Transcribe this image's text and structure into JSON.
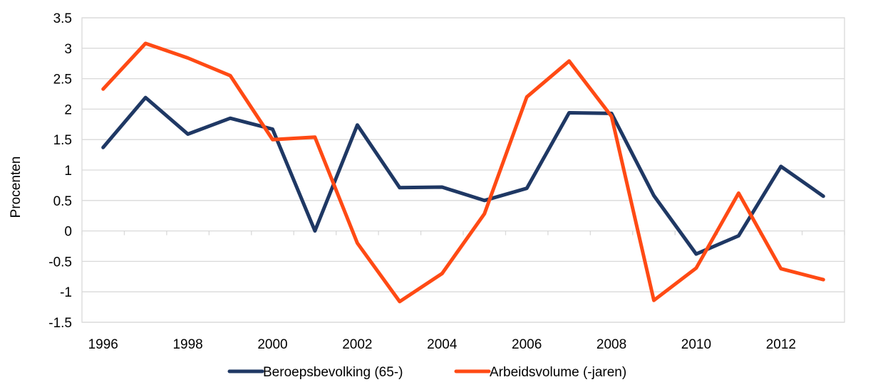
{
  "chart_data": {
    "type": "line",
    "ylabel": "Procenten",
    "xlabel": "",
    "x": [
      1996,
      1997,
      1998,
      1999,
      2000,
      2001,
      2002,
      2003,
      2004,
      2005,
      2006,
      2007,
      2008,
      2009,
      2010,
      2011,
      2012,
      2013
    ],
    "x_tick_labels": [
      "1996",
      "1998",
      "2000",
      "2002",
      "2004",
      "2006",
      "2008",
      "2010",
      "2012"
    ],
    "y_tick_labels": [
      "3.5",
      "3",
      "2.5",
      "2",
      "1.5",
      "1",
      "0.5",
      "0",
      "-0.5",
      "-1",
      "-1.5"
    ],
    "ylim": [
      -1.5,
      3.5
    ],
    "grid": true,
    "legend_position": "bottom",
    "series": [
      {
        "name": "Beroepsbevolking (65-)",
        "color": "#1f3864",
        "values": [
          1.37,
          2.19,
          1.59,
          1.85,
          1.67,
          0.0,
          1.74,
          0.71,
          0.72,
          0.5,
          0.7,
          1.94,
          1.93,
          0.58,
          -0.38,
          -0.08,
          1.06,
          0.57
        ]
      },
      {
        "name": "Arbeidsvolume (-jaren)",
        "color": "#ff4a14",
        "values": [
          2.33,
          3.08,
          2.84,
          2.55,
          1.5,
          1.54,
          -0.2,
          -1.16,
          -0.7,
          0.28,
          2.2,
          2.79,
          1.88,
          -1.14,
          -0.61,
          0.62,
          -0.62,
          -0.8
        ]
      }
    ]
  }
}
